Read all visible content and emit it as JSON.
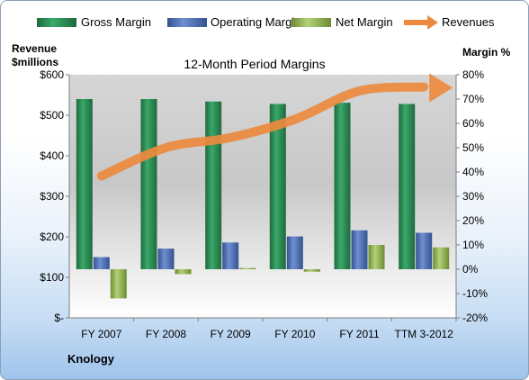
{
  "chart_data": {
    "type": "bar",
    "title": "12-Month Period Margins",
    "company": "Knology",
    "y_left_label": [
      "Revenue",
      "$millions"
    ],
    "y_right_label": "Margin %",
    "categories": [
      "FY 2007",
      "FY 2008",
      "FY 2009",
      "FY 2010",
      "FY 2011",
      "TTM 3-2012"
    ],
    "y_left_ticks": [
      "$-",
      "$100",
      "$200",
      "$300",
      "$400",
      "$500",
      "$600"
    ],
    "y_left_range": [
      0,
      600
    ],
    "y_right_ticks": [
      "-20%",
      "-10%",
      "0%",
      "10%",
      "20%",
      "30%",
      "40%",
      "50%",
      "60%",
      "70%",
      "80%"
    ],
    "y_right_range": [
      -20,
      80
    ],
    "legend_position": "top",
    "series": [
      {
        "name": "Gross Margin",
        "axis": "right",
        "kind": "bar",
        "color": "#2e8b57",
        "values": [
          70,
          70,
          69,
          68,
          68.5,
          68
        ]
      },
      {
        "name": "Operating Margin",
        "axis": "right",
        "kind": "bar",
        "color": "#4f6fb5",
        "values": [
          5,
          8.5,
          11,
          13.5,
          16,
          15
        ]
      },
      {
        "name": "Net Margin",
        "axis": "right",
        "kind": "bar",
        "color": "#8db04e",
        "values": [
          -12,
          -2,
          0.5,
          -1,
          10,
          9
        ]
      },
      {
        "name": "Revenues",
        "axis": "left",
        "kind": "line",
        "color": "#ed8a3f",
        "values": [
          350,
          420,
          445,
          490,
          560,
          570
        ]
      }
    ]
  }
}
